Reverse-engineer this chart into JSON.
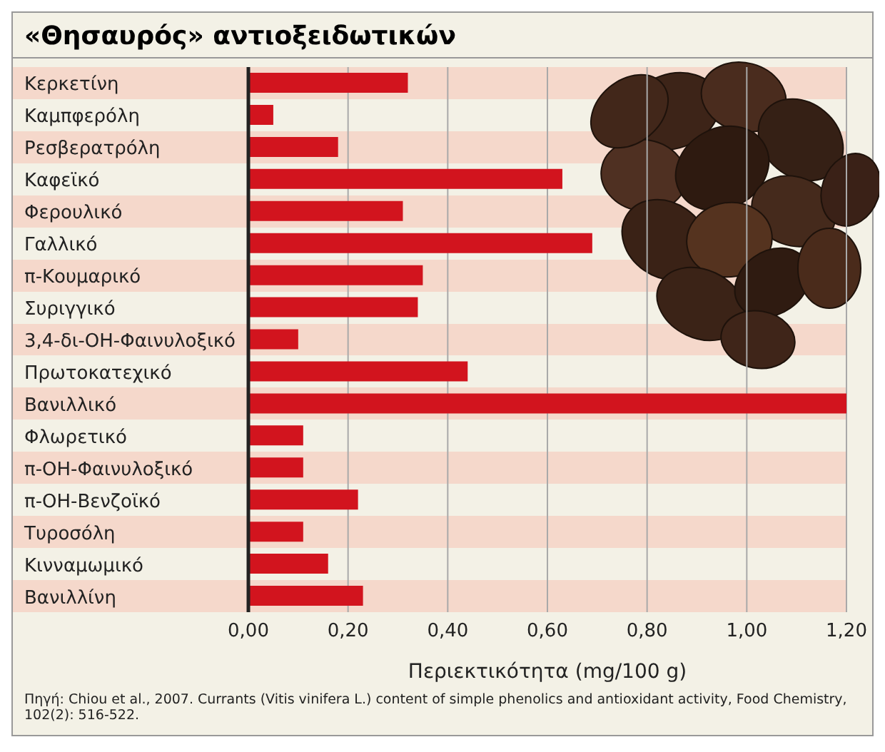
{
  "chart_data": {
    "type": "bar",
    "orientation": "horizontal",
    "title": "«Θησαυρός» αντιοξειδωτικών",
    "xlabel": "Περιεκτικότητα (mg/100 g)",
    "categories": [
      "Κερκετίνη",
      "Καμπφερόλη",
      "Ρεσβερατρόλη",
      "Καφεϊκό",
      "Φερουλικό",
      "Γαλλικό",
      "π-Κουμαρικό",
      "Συριγγικό",
      "3,4-δι-ΟΗ-Φαινυλοξικό",
      "Πρωτοκατεχικό",
      "Βανιλλικό",
      "Φλωρετικό",
      "π-ΟΗ-Φαινυλοξικό",
      "π-ΟΗ-Βενζοϊκό",
      "Τυροσόλη",
      "Κινναμωμικό",
      "Βανιλλίνη"
    ],
    "values": [
      0.32,
      0.05,
      0.18,
      0.63,
      0.31,
      0.69,
      0.35,
      0.34,
      0.1,
      0.44,
      1.2,
      0.11,
      0.11,
      0.22,
      0.11,
      0.16,
      0.23
    ],
    "color": "#d2141e",
    "xlim": [
      0,
      1.2
    ],
    "xticks": [
      {
        "value": 0,
        "label": "0,00"
      },
      {
        "value": 0.2,
        "label": "0,20"
      },
      {
        "value": 0.4,
        "label": "0,40"
      },
      {
        "value": 0.6,
        "label": "0,60"
      },
      {
        "value": 0.8,
        "label": "0,80"
      },
      {
        "value": 1,
        "label": "1,00"
      },
      {
        "value": 1.2,
        "label": "1,20"
      }
    ],
    "grid": "x",
    "annotations": [
      "Πηγή: Chiou et al., 2007. Currants (Vitis vinifera L.) content of simple phenolics and antioxidant activity, Food Chemistry, 102(2): 516-522."
    ]
  }
}
